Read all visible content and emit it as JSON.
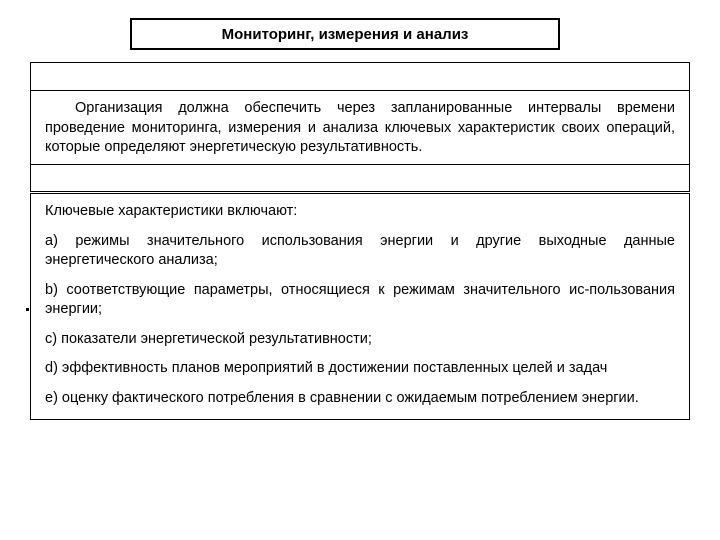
{
  "title": "Мониторинг, измерения и анализ",
  "intro": "Организация должна обеспечить через запланированные интервалы времени проведение мониторинга, измерения и анализа ключевых характеристик своих операций, которые определяют энергетическую результативность.",
  "list_heading": "Ключевые характеристики включают:",
  "items": [
    "a) режимы значительного использования энергии и другие выходные данные энергетического анализа;",
    "b) соответствующие параметры, относящиеся к режимам значительного ис-пользования энергии;",
    "c) показатели энергетической результативности;",
    "d) эффективность планов мероприятий в достижении поставленных целей и задач",
    "e) оценку фактического потребления в сравнении с ожидаемым потреблением энергии."
  ],
  "colors": {
    "border": "#000000",
    "text": "#000000",
    "background": "#ffffff"
  },
  "fontsize": 14.5,
  "title_fontsize": 15
}
